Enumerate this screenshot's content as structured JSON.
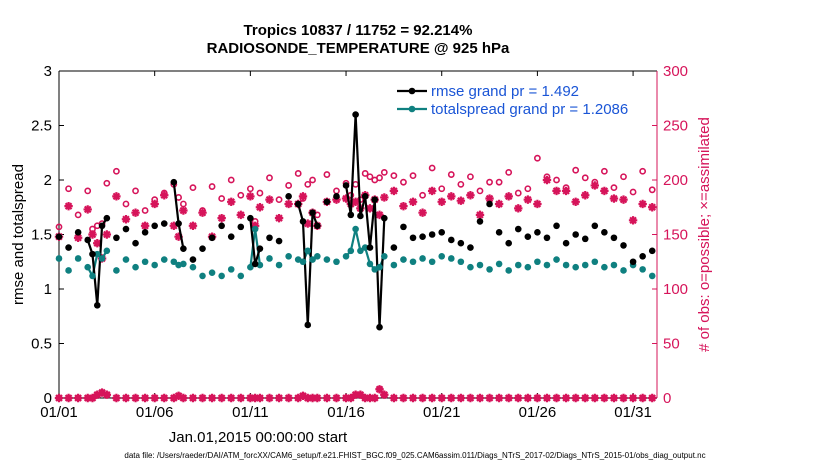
{
  "chart_data": {
    "type": "line",
    "title": "Tropics 10837 / 11752 = 92.214%",
    "subtitle": "RADIOSONDE_TEMPERATURE @ 925 hPa",
    "xlabel": "Jan.01,2015 00:00:00 start",
    "ylabel": "rmse and totalspread",
    "y2label": "# of obs: o=possible; ×=assimilated",
    "xlim": [
      0,
      31.25
    ],
    "ylim": [
      0,
      3
    ],
    "y2lim": [
      0,
      300
    ],
    "x_ticks": [
      0,
      5,
      10,
      15,
      20,
      25,
      30
    ],
    "x_tick_labels": [
      "01/01",
      "01/06",
      "01/11",
      "01/16",
      "01/21",
      "01/26",
      "01/31"
    ],
    "y_ticks": [
      0,
      0.5,
      1,
      1.5,
      2,
      2.5,
      3
    ],
    "y_tick_labels": [
      "0",
      "0.5",
      "1",
      "1.5",
      "2",
      "2.5",
      "3"
    ],
    "y2_ticks": [
      0,
      50,
      100,
      150,
      200,
      250,
      300
    ],
    "y2_tick_labels": [
      "0",
      "50",
      "100",
      "150",
      "200",
      "250",
      "300"
    ],
    "legend_position": "top-right",
    "series": [
      {
        "name": "rmse grand pr = 1.492",
        "color": "#000000",
        "x": [
          0,
          0.5,
          1,
          1.5,
          1.75,
          2,
          2.25,
          2.5,
          3,
          3.5,
          4,
          4.5,
          5,
          5.5,
          6,
          6.25,
          6.5,
          7,
          7.5,
          8,
          8.5,
          9,
          9.5,
          10,
          10.25,
          10.5,
          11,
          11.5,
          12,
          12.5,
          12.75,
          13,
          13.25,
          13.5,
          14,
          14.5,
          15,
          15.25,
          15.5,
          15.75,
          16,
          16.25,
          16.5,
          16.75,
          17,
          17.5,
          18,
          18.5,
          19,
          19.5,
          20,
          20.5,
          21,
          21.5,
          22,
          22.5,
          23,
          23.5,
          24,
          24.5,
          25,
          25.5,
          26,
          26.5,
          27,
          27.5,
          28,
          28.5,
          29,
          29.5,
          30,
          30.5,
          31
        ],
        "y": [
          1.48,
          1.38,
          1.52,
          1.45,
          1.32,
          0.85,
          1.58,
          1.65,
          1.47,
          1.55,
          1.42,
          1.52,
          1.58,
          1.6,
          1.98,
          1.6,
          1.37,
          1.27,
          1.37,
          1.47,
          1.58,
          1.48,
          1.57,
          1.65,
          1.23,
          1.37,
          1.47,
          1.44,
          1.85,
          1.78,
          1.62,
          0.67,
          1.7,
          1.58,
          1.8,
          1.85,
          1.95,
          1.68,
          2.6,
          1.67,
          1.85,
          1.38,
          1.82,
          0.65,
          1.65,
          1.38,
          1.57,
          1.47,
          1.48,
          1.5,
          1.52,
          1.45,
          1.42,
          1.38,
          1.62,
          1.78,
          1.52,
          1.42,
          1.55,
          1.48,
          1.52,
          1.47,
          1.58,
          1.42,
          1.5,
          1.46,
          1.58,
          1.52,
          1.47,
          1.4,
          1.25,
          1.3,
          1.35
        ]
      },
      {
        "name": "totalspread grand pr = 1.2086",
        "color": "#0f8080",
        "x": [
          0,
          0.5,
          1,
          1.5,
          1.75,
          2,
          2.25,
          2.5,
          3,
          3.5,
          4,
          4.5,
          5,
          5.5,
          6,
          6.25,
          6.5,
          7,
          7.5,
          8,
          8.5,
          9,
          9.5,
          10,
          10.25,
          10.5,
          11,
          11.5,
          12,
          12.5,
          12.75,
          13,
          13.25,
          13.5,
          14,
          14.5,
          15,
          15.25,
          15.5,
          15.75,
          16,
          16.25,
          16.5,
          16.75,
          17,
          17.5,
          18,
          18.5,
          19,
          19.5,
          20,
          20.5,
          21,
          21.5,
          22,
          22.5,
          23,
          23.5,
          24,
          24.5,
          25,
          25.5,
          26,
          26.5,
          27,
          27.5,
          28,
          28.5,
          29,
          29.5,
          30,
          30.5,
          31
        ],
        "y": [
          1.28,
          1.17,
          1.28,
          1.2,
          1.12,
          1.32,
          1.28,
          1.35,
          1.17,
          1.27,
          1.2,
          1.25,
          1.22,
          1.27,
          1.25,
          1.22,
          1.23,
          1.2,
          1.12,
          1.15,
          1.12,
          1.18,
          1.12,
          1.2,
          1.55,
          1.22,
          1.28,
          1.22,
          1.3,
          1.27,
          1.25,
          1.35,
          1.27,
          1.3,
          1.27,
          1.25,
          1.3,
          1.35,
          1.55,
          1.35,
          1.38,
          1.23,
          1.18,
          1.2,
          1.3,
          1.22,
          1.27,
          1.25,
          1.28,
          1.25,
          1.3,
          1.28,
          1.25,
          1.2,
          1.22,
          1.18,
          1.23,
          1.17,
          1.22,
          1.2,
          1.25,
          1.22,
          1.27,
          1.22,
          1.2,
          1.22,
          1.25,
          1.2,
          1.22,
          1.17,
          1.22,
          1.18,
          1.12
        ]
      },
      {
        "name": "possible obs (o)",
        "color": "#d6145a",
        "axis": "right",
        "x": [
          0,
          0.5,
          1,
          1.5,
          1.75,
          2,
          2.25,
          2.5,
          3,
          3.5,
          4,
          4.5,
          5,
          5.5,
          6,
          6.25,
          6.5,
          7,
          7.5,
          8,
          8.5,
          9,
          9.5,
          10,
          10.25,
          10.5,
          11,
          11.5,
          12,
          12.5,
          12.75,
          13,
          13.25,
          13.5,
          14,
          14.5,
          15,
          15.25,
          15.5,
          15.75,
          16,
          16.25,
          16.5,
          16.75,
          17,
          17.5,
          18,
          18.5,
          19,
          19.5,
          20,
          20.5,
          21,
          21.5,
          22,
          22.5,
          23,
          23.5,
          24,
          24.5,
          25,
          25.5,
          26,
          26.5,
          27,
          27.5,
          28,
          28.5,
          29,
          29.5,
          30,
          30.5,
          31
        ],
        "y": [
          157,
          192,
          168,
          190,
          155,
          158,
          160,
          197,
          208,
          178,
          190,
          172,
          182,
          188,
          196,
          184,
          178,
          193,
          172,
          194,
          183,
          200,
          186,
          192,
          162,
          188,
          202,
          182,
          195,
          206,
          183,
          196,
          200,
          168,
          205,
          190,
          197,
          186,
          196,
          182,
          206,
          203,
          200,
          202,
          207,
          204,
          198,
          204,
          186,
          211,
          192,
          205,
          196,
          203,
          190,
          198,
          198,
          207,
          188,
          192,
          220,
          203,
          200,
          193,
          209,
          202,
          198,
          208,
          193,
          203,
          189,
          208,
          191
        ]
      },
      {
        "name": "assimilated obs (×)",
        "color": "#d6145a",
        "axis": "right",
        "x": [
          0,
          0.5,
          1,
          1.5,
          1.75,
          2,
          2.25,
          2.5,
          3,
          3.5,
          4,
          4.5,
          5,
          5.5,
          6,
          6.25,
          6.5,
          7,
          7.5,
          8,
          8.5,
          9,
          9.5,
          10,
          10.25,
          10.5,
          11,
          11.5,
          12,
          12.5,
          12.75,
          13,
          13.25,
          13.5,
          14,
          14.5,
          15,
          15.25,
          15.5,
          15.75,
          16,
          16.25,
          16.5,
          16.75,
          17,
          17.5,
          18,
          18.5,
          19,
          19.5,
          20,
          20.5,
          21,
          21.5,
          22,
          22.5,
          23,
          23.5,
          24,
          24.5,
          25,
          25.5,
          26,
          26.5,
          27,
          27.5,
          28,
          28.5,
          29,
          29.5,
          30,
          30.5,
          31
        ],
        "y": [
          148,
          176,
          147,
          173,
          150,
          142,
          128,
          150,
          185,
          164,
          170,
          158,
          178,
          186,
          158,
          148,
          172,
          158,
          170,
          148,
          165,
          180,
          168,
          185,
          158,
          175,
          182,
          165,
          178,
          178,
          185,
          160,
          170,
          158,
          180,
          182,
          183,
          178,
          180,
          174,
          186,
          174,
          182,
          168,
          184,
          190,
          176,
          180,
          170,
          190,
          180,
          185,
          181,
          186,
          168,
          183,
          178,
          185,
          174,
          182,
          178,
          200,
          190,
          190,
          180,
          186,
          195,
          190,
          183,
          182,
          163,
          178,
          175
        ]
      }
    ],
    "counts_near_zero": {
      "x": [
        0,
        0.5,
        1,
        1.5,
        1.75,
        2,
        2.25,
        2.5,
        3,
        3.5,
        4,
        4.5,
        5,
        5.5,
        6,
        6.25,
        6.5,
        7,
        7.5,
        8,
        8.5,
        9,
        9.5,
        10,
        10.25,
        10.5,
        11,
        11.5,
        12,
        12.5,
        12.75,
        13,
        13.25,
        13.5,
        14,
        14.5,
        15,
        15.25,
        15.5,
        15.75,
        16,
        16.25,
        16.5,
        16.75,
        17,
        17.5,
        18,
        18.5,
        19,
        19.5,
        20,
        20.5,
        21,
        21.5,
        22,
        22.5,
        23,
        23.5,
        24,
        24.5,
        25,
        25.5,
        26,
        26.5,
        27,
        27.5,
        28,
        28.5,
        29,
        29.5,
        30,
        30.5,
        31
      ],
      "y": [
        0,
        0,
        0,
        0,
        0,
        3,
        5,
        3,
        0,
        0,
        0,
        0,
        0,
        0,
        0,
        2,
        0,
        0,
        0,
        0,
        0,
        0,
        0,
        0,
        0,
        0,
        0,
        0,
        0,
        0,
        2,
        0,
        0,
        0,
        0,
        0,
        0,
        0,
        3,
        3,
        0,
        0,
        0,
        8,
        3,
        0,
        0,
        0,
        0,
        0,
        0,
        0,
        0,
        0,
        0,
        0,
        0,
        0,
        0,
        0,
        0,
        0,
        0,
        0,
        0,
        0,
        0,
        0,
        0,
        0,
        0,
        0,
        0
      ]
    },
    "footer": "data file: /Users/raeder/DAI/ATM_forcXX/CAM6_setup/f.e21.FHIST_BGC.f09_025.CAM6assim.011/Diags_NTrS_2017-02/Diags_NTrS_2015-01/obs_diag_output.nc"
  }
}
